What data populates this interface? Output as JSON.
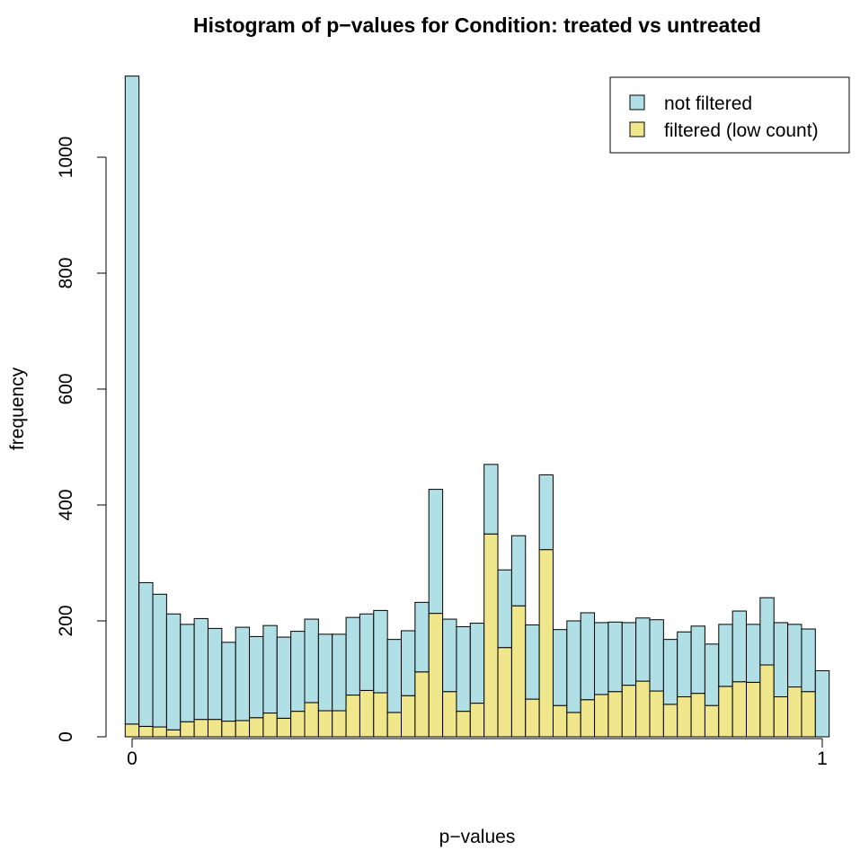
{
  "chart_data": {
    "type": "bar",
    "stacked": true,
    "title": "Histogram of p−values for Condition: treated vs untreated",
    "xlabel": "p−values",
    "ylabel": "frequency",
    "xlim": [
      0,
      1
    ],
    "ylim": [
      0,
      1140
    ],
    "x_ticks": [
      0,
      1
    ],
    "x_tick_labels": [
      "0",
      "1"
    ],
    "y_ticks": [
      0,
      200,
      400,
      600,
      800,
      1000
    ],
    "y_tick_labels": [
      "0",
      "200",
      "400",
      "600",
      "800",
      "1000"
    ],
    "bin_width": 0.02,
    "grid": false,
    "legend_position": "top-right",
    "colors": {
      "not_filtered": "#b0dfe5",
      "filtered": "#f0e68c",
      "stroke": "#000000"
    },
    "series": [
      {
        "name": "not filtered",
        "color": "#b0dfe5",
        "values": [
          1118,
          248,
          229,
          200,
          168,
          174,
          157,
          136,
          161,
          140,
          151,
          140,
          138,
          144,
          132,
          132,
          134,
          132,
          142,
          126,
          112,
          120,
          214,
          125,
          146,
          138,
          120,
          134,
          121,
          128,
          129,
          131,
          158,
          150,
          124,
          120,
          108,
          109,
          123,
          112,
          112,
          116,
          106,
          107,
          122,
          100,
          116,
          128,
          108,
          108,
          114
        ]
      },
      {
        "name": "filtered (low count)",
        "color": "#f0e68c",
        "values": [
          22,
          18,
          17,
          12,
          26,
          30,
          30,
          27,
          28,
          33,
          41,
          32,
          44,
          59,
          45,
          45,
          72,
          80,
          76,
          42,
          71,
          112,
          213,
          78,
          44,
          58,
          350,
          154,
          226,
          65,
          323,
          54,
          42,
          64,
          73,
          78,
          89,
          96,
          79,
          56,
          69,
          75,
          54,
          87,
          95,
          94,
          124,
          69,
          86,
          78,
          0
        ]
      }
    ]
  },
  "legend": {
    "items": [
      {
        "label": "not filtered",
        "color": "#b0dfe5"
      },
      {
        "label": "filtered (low count)",
        "color": "#f0e68c"
      }
    ]
  }
}
